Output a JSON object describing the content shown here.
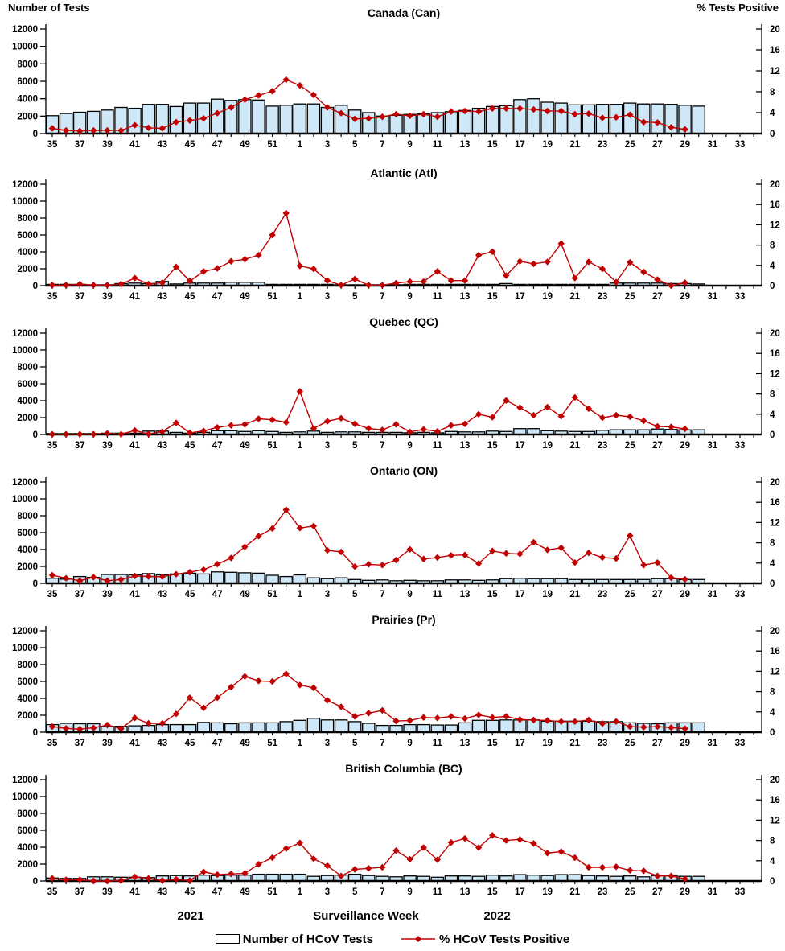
{
  "axes": {
    "left_title": "Number of Tests",
    "right_title": "% Tests Positive",
    "left_ticks": [
      0,
      2000,
      4000,
      6000,
      8000,
      10000,
      12000
    ],
    "right_ticks": [
      0,
      4,
      8,
      12,
      16,
      20
    ],
    "left_max": 12000,
    "right_max": 20,
    "weeks": [
      35,
      36,
      37,
      38,
      39,
      40,
      41,
      42,
      43,
      44,
      45,
      46,
      47,
      48,
      49,
      50,
      51,
      52,
      1,
      2,
      3,
      4,
      5,
      6,
      7,
      8,
      9,
      10,
      11,
      12,
      13,
      14,
      15,
      16,
      17,
      18,
      19,
      20,
      21,
      22,
      23,
      24,
      25,
      26,
      27,
      28,
      29,
      30,
      31,
      32,
      33,
      34
    ]
  },
  "footer": {
    "year_left": "2021",
    "xaxis_title": "Surveillance Week",
    "year_right": "2022"
  },
  "legend": {
    "bar_label": "Number of HCoV Tests",
    "line_label": "% HCoV Tests Positive"
  },
  "colors": {
    "bar_fill": "#cfe8f8",
    "line": "#c00000",
    "axis": "#000000"
  },
  "chart_data": [
    {
      "type": "bar+line",
      "id": "canada-can",
      "title": "Canada (Can)",
      "bar_series": "Number of HCoV Tests",
      "line_series": "% HCoV Tests Positive",
      "tests": [
        2050,
        2300,
        2450,
        2550,
        2700,
        3000,
        2900,
        3350,
        3350,
        3100,
        3500,
        3500,
        3950,
        3800,
        3900,
        3850,
        3150,
        3250,
        3400,
        3400,
        3000,
        3250,
        2700,
        2400,
        2000,
        2100,
        2200,
        2250,
        2400,
        2500,
        2650,
        2900,
        3100,
        3200,
        3900,
        4000,
        3600,
        3500,
        3300,
        3300,
        3350,
        3350,
        3500,
        3400,
        3400,
        3350,
        3250,
        3150,
        null,
        null,
        null,
        null
      ],
      "pct_positive": [
        1.0,
        0.6,
        0.5,
        0.6,
        0.6,
        0.6,
        1.6,
        1.1,
        1.0,
        2.2,
        2.5,
        2.9,
        3.9,
        5.0,
        6.5,
        7.3,
        8.1,
        10.3,
        9.2,
        7.4,
        5.0,
        3.9,
        2.8,
        2.9,
        3.2,
        3.7,
        3.4,
        3.7,
        3.2,
        4.2,
        4.3,
        4.2,
        4.8,
        4.8,
        4.8,
        4.6,
        4.3,
        4.3,
        3.7,
        3.8,
        3.0,
        3.1,
        3.6,
        2.2,
        2.1,
        1.2,
        0.8,
        null,
        null,
        null,
        null,
        null
      ]
    },
    {
      "type": "bar+line",
      "id": "atlantic-atl",
      "title": "Atlantic (Atl)",
      "bar_series": "Number of HCoV Tests",
      "line_series": "% HCoV Tests Positive",
      "tests": [
        150,
        150,
        150,
        100,
        100,
        250,
        300,
        250,
        500,
        200,
        300,
        300,
        300,
        400,
        400,
        400,
        150,
        150,
        150,
        150,
        150,
        100,
        100,
        100,
        100,
        100,
        150,
        150,
        150,
        150,
        150,
        150,
        150,
        250,
        150,
        150,
        150,
        150,
        150,
        150,
        150,
        300,
        300,
        300,
        300,
        250,
        250,
        200,
        null,
        null,
        null,
        null
      ],
      "pct_positive": [
        0.1,
        0.1,
        0.3,
        0.1,
        0.1,
        0.3,
        1.5,
        0.3,
        0.6,
        3.7,
        0.9,
        2.8,
        3.4,
        4.8,
        5.2,
        6.0,
        10.0,
        14.3,
        3.9,
        3.3,
        1.0,
        0.1,
        1.3,
        0.1,
        0.1,
        0.5,
        0.8,
        0.8,
        2.8,
        1.0,
        1.0,
        6.0,
        6.7,
        2.0,
        4.8,
        4.3,
        4.7,
        8.3,
        1.5,
        4.7,
        3.3,
        0.7,
        4.6,
        2.7,
        1.2,
        0.0,
        0.6,
        null,
        null,
        null,
        null,
        null
      ]
    },
    {
      "type": "bar+line",
      "id": "quebec-qc",
      "title": "Quebec (QC)",
      "bar_series": "Number of HCoV Tests",
      "line_series": "% HCoV Tests Positive",
      "tests": [
        100,
        100,
        100,
        100,
        150,
        150,
        150,
        400,
        400,
        250,
        150,
        250,
        450,
        450,
        350,
        450,
        350,
        250,
        300,
        400,
        250,
        300,
        300,
        250,
        250,
        250,
        200,
        250,
        200,
        350,
        300,
        300,
        400,
        350,
        700,
        700,
        450,
        400,
        350,
        350,
        500,
        550,
        550,
        550,
        650,
        600,
        550,
        550,
        null,
        null,
        null,
        null
      ],
      "pct_positive": [
        0.05,
        0.05,
        0.05,
        0.05,
        0.2,
        0.05,
        0.8,
        0.1,
        0.55,
        2.3,
        0.3,
        0.7,
        1.4,
        1.8,
        2.0,
        3.1,
        2.9,
        2.4,
        8.5,
        1.2,
        2.6,
        3.2,
        2.1,
        1.2,
        0.9,
        2.0,
        0.5,
        1.0,
        0.6,
        1.8,
        2.1,
        4.0,
        3.4,
        6.7,
        5.3,
        3.8,
        5.4,
        3.6,
        7.3,
        5.1,
        3.3,
        3.8,
        3.5,
        2.7,
        1.6,
        1.5,
        1.1,
        null,
        null,
        null,
        null,
        null
      ]
    },
    {
      "type": "bar+line",
      "id": "ontario-on",
      "title": "Ontario (ON)",
      "bar_series": "Number of HCoV Tests",
      "line_series": "% HCoV Tests Positive",
      "tests": [
        600,
        500,
        800,
        700,
        1050,
        1050,
        1000,
        1150,
        1000,
        1100,
        1200,
        1100,
        1350,
        1300,
        1250,
        1200,
        950,
        800,
        1000,
        650,
        550,
        650,
        450,
        350,
        400,
        300,
        350,
        300,
        300,
        400,
        400,
        350,
        400,
        550,
        600,
        550,
        550,
        550,
        450,
        450,
        450,
        450,
        450,
        450,
        550,
        550,
        450,
        450,
        null,
        null,
        null,
        null
      ],
      "pct_positive": [
        1.6,
        1.0,
        0.5,
        1.2,
        0.5,
        0.75,
        1.45,
        1.35,
        1.3,
        1.8,
        2.2,
        2.7,
        3.8,
        5.0,
        7.2,
        9.3,
        10.8,
        14.5,
        10.9,
        11.3,
        6.5,
        6.2,
        3.3,
        3.75,
        3.6,
        4.6,
        6.7,
        4.8,
        5.1,
        5.5,
        5.6,
        3.9,
        6.4,
        5.9,
        5.8,
        8.1,
        6.6,
        7.0,
        4.1,
        6.0,
        5.1,
        4.9,
        9.4,
        3.6,
        4.1,
        1.1,
        0.8,
        null,
        null,
        null,
        null,
        null
      ]
    },
    {
      "type": "bar+line",
      "id": "prairies-pr",
      "title": "Prairies (Pr)",
      "bar_series": "Number of HCoV Tests",
      "line_series": "% HCoV Tests Positive",
      "tests": [
        900,
        1050,
        1000,
        1000,
        700,
        700,
        750,
        800,
        900,
        900,
        900,
        1150,
        1100,
        1000,
        1100,
        1100,
        1100,
        1250,
        1400,
        1650,
        1450,
        1450,
        1250,
        1050,
        800,
        800,
        900,
        900,
        850,
        850,
        1100,
        1400,
        1400,
        1450,
        1450,
        1450,
        1300,
        1300,
        1300,
        1300,
        1250,
        1250,
        1100,
        1050,
        1000,
        1100,
        1100,
        1100,
        null,
        null,
        null,
        null
      ],
      "pct_positive": [
        1.1,
        0.75,
        0.6,
        0.85,
        1.4,
        0.7,
        2.8,
        1.75,
        1.75,
        3.6,
        6.8,
        4.8,
        6.8,
        8.9,
        11.0,
        10.1,
        10.0,
        11.5,
        9.3,
        8.75,
        6.3,
        5.0,
        3.1,
        3.75,
        4.3,
        2.2,
        2.3,
        2.9,
        2.8,
        3.1,
        2.7,
        3.4,
        2.9,
        3.1,
        2.5,
        2.4,
        2.3,
        2.1,
        2.1,
        2.4,
        1.7,
        2.1,
        1.1,
        1.0,
        1.1,
        0.9,
        0.7,
        null,
        null,
        null,
        null,
        null
      ]
    },
    {
      "type": "bar+line",
      "id": "british-columbia-bc",
      "title": "British Columbia (BC)",
      "bar_series": "Number of HCoV Tests",
      "line_series": "% HCoV Tests Positive",
      "tests": [
        350,
        300,
        300,
        500,
        500,
        450,
        450,
        400,
        600,
        650,
        600,
        700,
        650,
        700,
        700,
        800,
        800,
        800,
        800,
        550,
        650,
        700,
        800,
        650,
        550,
        500,
        600,
        550,
        450,
        600,
        600,
        550,
        700,
        600,
        750,
        700,
        650,
        750,
        750,
        650,
        600,
        550,
        600,
        500,
        650,
        650,
        550,
        550,
        null,
        null,
        null,
        null
      ],
      "pct_positive": [
        0.5,
        0.25,
        0.25,
        0.0,
        0.0,
        0.1,
        0.8,
        0.5,
        0.1,
        0.35,
        0.1,
        1.8,
        1.25,
        1.4,
        1.5,
        3.3,
        4.6,
        6.4,
        7.5,
        4.4,
        3.0,
        1.0,
        2.3,
        2.5,
        2.7,
        6.0,
        4.3,
        6.6,
        4.2,
        7.6,
        8.4,
        6.6,
        9.0,
        8.0,
        8.2,
        7.4,
        5.5,
        5.8,
        4.6,
        2.7,
        2.7,
        2.8,
        2.1,
        2.0,
        1.0,
        1.0,
        0.4,
        null,
        null,
        null,
        null,
        null
      ]
    }
  ]
}
